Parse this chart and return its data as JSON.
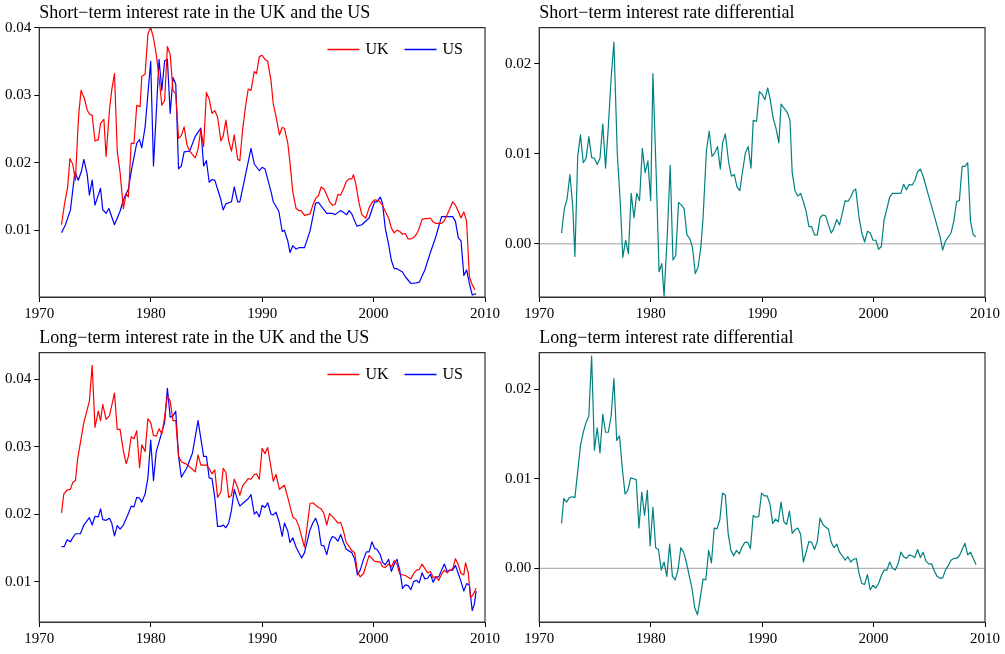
{
  "chart_data": [
    {
      "type": "line",
      "title": "Short−term interest rate in the UK and the US",
      "xlim": [
        1970,
        2010
      ],
      "xticks": [
        1970,
        1980,
        1990,
        2000,
        2010
      ],
      "ylim": [
        0.0001,
        0.04
      ],
      "yticks": [
        0.01,
        0.02,
        0.03,
        0.04
      ],
      "legend": "top right",
      "series": [
        {
          "name": "UK",
          "color": "#ff0000",
          "x": [
            1972.0,
            1972.25,
            1972.55,
            1972.75,
            1973.0,
            1973.25,
            1973.45,
            1973.55,
            1973.75,
            1974.05,
            1974.3,
            1974.5,
            1974.75,
            1975.0,
            1975.3,
            1975.5,
            1975.8,
            1976.0,
            1976.3,
            1976.5,
            1976.75,
            1977.0,
            1977.25,
            1977.55,
            1977.8,
            1978.0,
            1978.25,
            1978.5,
            1978.75,
            1979.05,
            1979.2,
            1979.5,
            1979.75,
            1980.0,
            1980.25,
            1980.5,
            1980.75,
            1981.0,
            1981.25,
            1981.5,
            1981.75,
            1982.0,
            1982.25,
            1982.5,
            1982.75,
            1983.0,
            1983.25,
            1983.5,
            1984.0,
            1984.25,
            1984.5,
            1984.75,
            1985.0,
            1985.25,
            1985.5,
            1985.75,
            1986.0,
            1986.3,
            1986.5,
            1986.75,
            1987.0,
            1987.25,
            1987.5,
            1987.8,
            1988.0,
            1988.25,
            1988.5,
            1988.75,
            1989.0,
            1989.3,
            1989.5,
            1989.75,
            1990.0,
            1990.25,
            1990.5,
            1990.8,
            1991.0,
            1991.25,
            1991.55,
            1991.8,
            1992.0,
            1992.3,
            1992.5,
            1992.75,
            1993.05,
            1993.3,
            1993.5,
            1993.8,
            1994.3,
            1994.55,
            1994.8,
            1995.05,
            1995.3,
            1995.55,
            1995.8,
            1996.05,
            1996.3,
            1996.55,
            1996.8,
            1997.05,
            1997.3,
            1997.55,
            1997.8,
            1998.05,
            1998.2,
            1998.4,
            1998.7,
            1998.95,
            1999.3,
            1999.6,
            1999.85,
            2000.1,
            2000.3,
            2000.5,
            2000.8,
            2001.05,
            2001.35,
            2001.6,
            2001.85,
            2002.1,
            2002.35,
            2002.6,
            2002.85,
            2003.1,
            2003.35,
            2003.6,
            2003.85,
            2004.1,
            2004.35,
            2004.6,
            2004.85,
            2005.1,
            2005.35,
            2005.6,
            2005.85,
            2006.1,
            2006.35,
            2006.6,
            2006.85,
            2007.1,
            2007.35,
            2007.6,
            2007.85,
            2008.1,
            2008.35,
            2008.6,
            2008.85,
            2009.1
          ],
          "values": [
            0.0108,
            0.0137,
            0.0164,
            0.0206,
            0.0198,
            0.0174,
            0.0244,
            0.0273,
            0.0307,
            0.0295,
            0.0278,
            0.0272,
            0.027,
            0.0232,
            0.0234,
            0.0258,
            0.0264,
            0.0209,
            0.0278,
            0.0307,
            0.0332,
            0.0217,
            0.0186,
            0.0132,
            0.0154,
            0.0149,
            0.0229,
            0.0228,
            0.0285,
            0.0283,
            0.0328,
            0.0331,
            0.0391,
            0.04,
            0.0385,
            0.036,
            0.0326,
            0.0285,
            0.0292,
            0.0372,
            0.036,
            0.0307,
            0.0302,
            0.0236,
            0.024,
            0.0253,
            0.0227,
            0.0217,
            0.0207,
            0.022,
            0.0249,
            0.0224,
            0.0304,
            0.0294,
            0.0273,
            0.0277,
            0.0268,
            0.0232,
            0.0239,
            0.0263,
            0.0232,
            0.0217,
            0.0241,
            0.0205,
            0.0203,
            0.0249,
            0.0282,
            0.0309,
            0.0307,
            0.0335,
            0.0332,
            0.0357,
            0.0359,
            0.0353,
            0.035,
            0.0321,
            0.0287,
            0.0268,
            0.0241,
            0.0252,
            0.0251,
            0.0229,
            0.02,
            0.0157,
            0.0132,
            0.0129,
            0.0129,
            0.0122,
            0.0124,
            0.0137,
            0.0147,
            0.0151,
            0.0164,
            0.0161,
            0.0152,
            0.0142,
            0.0137,
            0.0138,
            0.0153,
            0.0152,
            0.0161,
            0.0172,
            0.0176,
            0.0176,
            0.0182,
            0.0169,
            0.014,
            0.0123,
            0.0118,
            0.0133,
            0.0141,
            0.0145,
            0.0144,
            0.0143,
            0.0137,
            0.0128,
            0.0118,
            0.0103,
            0.0096,
            0.01,
            0.0098,
            0.0094,
            0.0095,
            0.0087,
            0.0087,
            0.0089,
            0.0094,
            0.0103,
            0.0116,
            0.0117,
            0.0117,
            0.0118,
            0.0112,
            0.011,
            0.011,
            0.011,
            0.0114,
            0.0123,
            0.0132,
            0.0142,
            0.0137,
            0.0128,
            0.0118,
            0.0127,
            0.0113,
            0.0031,
            0.0019,
            0.0012
          ]
        },
        {
          "name": "US",
          "color": "#0000ff",
          "x": [
            1972.0,
            1972.35,
            1972.8,
            1973.2,
            1973.5,
            1973.8,
            1974.0,
            1974.3,
            1974.5,
            1974.75,
            1975.0,
            1975.5,
            1975.7,
            1976.0,
            1976.25,
            1976.75,
            1977.25,
            1977.55,
            1978.0,
            1978.3,
            1978.75,
            1979.0,
            1979.2,
            1979.5,
            1980.0,
            1980.25,
            1980.5,
            1980.75,
            1981.0,
            1981.25,
            1981.5,
            1981.75,
            1982.0,
            1982.25,
            1982.5,
            1982.75,
            1983.0,
            1983.5,
            1984.0,
            1984.5,
            1984.75,
            1985.0,
            1985.25,
            1985.5,
            1985.75,
            1986.3,
            1986.5,
            1986.75,
            1987.25,
            1987.5,
            1987.8,
            1988.0,
            1988.5,
            1989.0,
            1989.3,
            1989.75,
            1990.0,
            1990.25,
            1990.8,
            1991.0,
            1991.5,
            1991.8,
            1992.0,
            1992.3,
            1992.5,
            1992.75,
            1993.05,
            1993.3,
            1993.8,
            1994.3,
            1994.8,
            1995.05,
            1995.8,
            1996.3,
            1996.55,
            1997.05,
            1997.6,
            1997.8,
            1998.05,
            1998.5,
            1998.95,
            1999.6,
            2000.1,
            2000.3,
            2000.6,
            2000.8,
            2001.05,
            2001.35,
            2001.6,
            2001.85,
            2002.1,
            2002.6,
            2002.85,
            2003.35,
            2003.85,
            2004.1,
            2004.6,
            2005.1,
            2005.6,
            2006.1,
            2006.6,
            2007.1,
            2007.35,
            2007.6,
            2007.85,
            2008.1,
            2008.35,
            2008.6,
            2008.85,
            2009.2
          ],
          "values": [
            0.0096,
            0.0108,
            0.013,
            0.0186,
            0.0174,
            0.0188,
            0.0205,
            0.0183,
            0.0152,
            0.0174,
            0.0137,
            0.0162,
            0.013,
            0.0125,
            0.0132,
            0.0108,
            0.0128,
            0.0145,
            0.0161,
            0.0191,
            0.0229,
            0.0234,
            0.0222,
            0.0253,
            0.035,
            0.0195,
            0.0273,
            0.0353,
            0.0307,
            0.0351,
            0.0353,
            0.0273,
            0.0326,
            0.0316,
            0.0191,
            0.0195,
            0.0216,
            0.0217,
            0.0239,
            0.0251,
            0.0195,
            0.0203,
            0.0171,
            0.0175,
            0.0174,
            0.0145,
            0.013,
            0.0139,
            0.0142,
            0.0164,
            0.0142,
            0.0142,
            0.0181,
            0.0221,
            0.0198,
            0.0188,
            0.0193,
            0.0191,
            0.0157,
            0.0142,
            0.0128,
            0.0098,
            0.01,
            0.0084,
            0.0067,
            0.0077,
            0.0072,
            0.0074,
            0.0074,
            0.0099,
            0.014,
            0.0141,
            0.0125,
            0.0125,
            0.0123,
            0.0129,
            0.0123,
            0.0129,
            0.0124,
            0.0106,
            0.0108,
            0.0118,
            0.0142,
            0.0142,
            0.0149,
            0.014,
            0.0103,
            0.0079,
            0.0055,
            0.0043,
            0.0043,
            0.0038,
            0.0031,
            0.0021,
            0.0022,
            0.0023,
            0.0041,
            0.0067,
            0.0091,
            0.012,
            0.012,
            0.012,
            0.0113,
            0.0089,
            0.0084,
            0.0033,
            0.0041,
            0.0021,
            0.0004,
            0.0006
          ]
        }
      ]
    },
    {
      "type": "line",
      "title": "Short−term interest rate differential",
      "xlim": [
        1970,
        2010
      ],
      "xticks": [
        1970,
        1980,
        1990,
        2000,
        2010
      ],
      "ylim": [
        -0.0059,
        0.024
      ],
      "yticks": [
        {
          "value": 0,
          "label": "0.00"
        },
        0.01,
        0.02
      ],
      "ref_lines": [
        {
          "axis": "y",
          "value": 0,
          "color": "#a0a0a0"
        }
      ],
      "series": [
        {
          "color": "#008080",
          "x": [
            1972.0,
            1972.25,
            1972.5,
            1972.75,
            1973.0,
            1973.2,
            1973.45,
            1973.7,
            1973.95,
            1974.2,
            1974.45,
            1974.7,
            1974.95,
            1975.2,
            1975.45,
            1975.7,
            1975.95,
            1976.2,
            1976.45,
            1976.7,
            1977.0,
            1977.25,
            1977.5,
            1977.75,
            1978.0,
            1978.25,
            1978.5,
            1978.75,
            1979.0,
            1979.25,
            1979.5,
            1979.75,
            1980.0,
            1980.2,
            1980.5,
            1980.75,
            1981.0,
            1981.2,
            1981.5,
            1981.75,
            1982.0,
            1982.25,
            1982.5,
            1982.75,
            1983.0,
            1983.25,
            1983.5,
            1983.75,
            1984.0,
            1984.25,
            1984.5,
            1984.7,
            1985.0,
            1985.25,
            1985.5,
            1985.75,
            1986.0,
            1986.25,
            1986.45,
            1986.7,
            1987.0,
            1987.25,
            1987.5,
            1987.75,
            1988.0,
            1988.2,
            1988.5,
            1988.75,
            1989.0,
            1989.2,
            1989.5,
            1989.75,
            1990.0,
            1990.25,
            1990.5,
            1990.7,
            1991.0,
            1991.25,
            1991.5,
            1991.7,
            1991.95,
            1992.25,
            1992.5,
            1992.7,
            1992.95,
            1993.2,
            1993.45,
            1993.7,
            1993.95,
            1994.2,
            1994.45,
            1994.7,
            1994.95,
            1995.2,
            1995.45,
            1995.7,
            1995.95,
            1996.2,
            1996.4,
            1996.7,
            1996.95,
            1997.2,
            1997.45,
            1997.7,
            1997.95,
            1998.2,
            1998.4,
            1998.7,
            1998.95,
            1999.2,
            1999.45,
            1999.7,
            1999.95,
            2000.2,
            2000.45,
            2000.7,
            2000.95,
            2001.2,
            2001.45,
            2001.7,
            2002.0,
            2002.2,
            2002.45,
            2002.7,
            2002.95,
            2003.2,
            2003.45,
            2003.7,
            2003.95,
            2004.2,
            2004.45,
            2004.95,
            2005.45,
            2005.95,
            2006.2,
            2006.45,
            2006.95,
            2007.2,
            2007.45,
            2007.7,
            2007.95,
            2008.2,
            2008.45,
            2008.7,
            2008.95,
            2009.2
          ],
          "values": [
            0.0012,
            0.0039,
            0.005,
            0.0077,
            0.0043,
            -0.0014,
            0.0097,
            0.0121,
            0.009,
            0.0095,
            0.0119,
            0.0096,
            0.0095,
            0.0088,
            0.0095,
            0.0133,
            0.0084,
            0.013,
            0.0184,
            0.0224,
            0.0101,
            0.005,
            -0.0015,
            0.0004,
            -0.0011,
            0.0056,
            0.0029,
            0.0056,
            0.0048,
            0.0106,
            0.0079,
            0.0092,
            0.0048,
            0.0189,
            0.0075,
            -0.0031,
            -0.0022,
            -0.0058,
            0.0012,
            0.0087,
            -0.0018,
            -0.0013,
            0.0046,
            0.0043,
            0.0039,
            0.001,
            0.0006,
            -0.0004,
            -0.0033,
            -0.0026,
            -0.0004,
            0.0029,
            0.0103,
            0.0125,
            0.0097,
            0.0101,
            0.0108,
            0.0083,
            0.0112,
            0.0122,
            0.009,
            0.0075,
            0.0077,
            0.0063,
            0.0059,
            0.0077,
            0.0101,
            0.0108,
            0.0084,
            0.0137,
            0.0136,
            0.0169,
            0.0166,
            0.016,
            0.0173,
            0.0162,
            0.0139,
            0.0128,
            0.0112,
            0.0155,
            0.0151,
            0.0146,
            0.0137,
            0.0079,
            0.0059,
            0.0053,
            0.0056,
            0.0047,
            0.0036,
            0.0019,
            0.0019,
            0.001,
            0.001,
            0.0029,
            0.0032,
            0.0031,
            0.0021,
            0.0012,
            0.0016,
            0.0027,
            0.0021,
            0.0034,
            0.0048,
            0.0047,
            0.0052,
            0.0059,
            0.0061,
            0.0029,
            0.0012,
            0.0002,
            0.0014,
            0.0012,
            0.0004,
            0.0004,
            -0.0006,
            -0.0003,
            0.0027,
            0.0039,
            0.0052,
            0.0056,
            0.0056,
            0.0056,
            0.0056,
            0.0066,
            0.006,
            0.0066,
            0.0065,
            0.007,
            0.008,
            0.0083,
            0.0075,
            0.0053,
            0.0031,
            0.0009,
            -0.0007,
            0.0003,
            0.0012,
            0.0025,
            0.0047,
            0.0048,
            0.0086,
            0.0086,
            0.009,
            0.0025,
            0.001,
            0.0008
          ]
        }
      ]
    },
    {
      "type": "line",
      "title": "Long−term interest rate in the UK and the US",
      "xlim": [
        1970,
        2010
      ],
      "xticks": [
        1970,
        1980,
        1990,
        2000,
        2010
      ],
      "ylim": [
        0.004,
        0.044
      ],
      "yticks": [
        0.01,
        0.02,
        0.03,
        0.04
      ],
      "legend": "top right",
      "series": [
        {
          "name": "UK",
          "color": "#ff0000",
          "x": [
            1972.0,
            1972.2,
            1972.5,
            1972.8,
            1973.0,
            1973.25,
            1973.45,
            1973.75,
            1974.0,
            1974.5,
            1974.75,
            1975.0,
            1975.3,
            1975.5,
            1975.7,
            1976.0,
            1976.3,
            1976.75,
            1977.0,
            1977.25,
            1977.55,
            1977.8,
            1978.0,
            1978.25,
            1978.5,
            1978.75,
            1979.0,
            1979.2,
            1979.5,
            1979.75,
            1980.0,
            1980.25,
            1980.5,
            1980.75,
            1981.0,
            1981.25,
            1981.5,
            1981.75,
            1982.0,
            1982.25,
            1982.5,
            1982.75,
            1983.25,
            1984.0,
            1984.25,
            1984.5,
            1985.0,
            1985.25,
            1985.5,
            1985.75,
            1986.0,
            1986.3,
            1986.5,
            1986.75,
            1987.0,
            1987.25,
            1987.5,
            1987.8,
            1988.0,
            1988.25,
            1988.75,
            1989.0,
            1989.3,
            1989.5,
            1989.75,
            1990.0,
            1990.25,
            1990.5,
            1990.8,
            1991.0,
            1991.25,
            1991.55,
            1992.0,
            1992.3,
            1992.75,
            1993.05,
            1993.3,
            1993.8,
            1994.3,
            1994.55,
            1995.05,
            1995.3,
            1995.55,
            1995.8,
            1996.05,
            1996.55,
            1996.8,
            1997.05,
            1997.3,
            1997.55,
            1998.05,
            1998.3,
            1998.55,
            1998.8,
            1999.1,
            1999.6,
            2000.1,
            2000.6,
            2000.8,
            2001.05,
            2001.35,
            2001.6,
            2001.85,
            2002.1,
            2002.35,
            2002.85,
            2003.35,
            2003.6,
            2003.85,
            2004.1,
            2004.35,
            2004.85,
            2005.1,
            2005.35,
            2005.6,
            2005.85,
            2006.1,
            2006.35,
            2006.6,
            2006.85,
            2007.1,
            2007.35,
            2007.6,
            2007.85,
            2008.1,
            2008.25,
            2008.5,
            2008.7,
            2008.95,
            2009.2
          ],
          "values": [
            0.0202,
            0.023,
            0.0236,
            0.0237,
            0.0247,
            0.025,
            0.0283,
            0.0312,
            0.0336,
            0.0368,
            0.0421,
            0.0329,
            0.0353,
            0.0339,
            0.0363,
            0.0341,
            0.0346,
            0.038,
            0.0326,
            0.0326,
            0.0294,
            0.0275,
            0.0286,
            0.0315,
            0.0312,
            0.0324,
            0.0269,
            0.0303,
            0.0293,
            0.0342,
            0.0336,
            0.0317,
            0.0316,
            0.0327,
            0.0319,
            0.0344,
            0.0376,
            0.0368,
            0.0339,
            0.0339,
            0.0286,
            0.0278,
            0.0274,
            0.0263,
            0.0288,
            0.0273,
            0.0273,
            0.0268,
            0.026,
            0.0266,
            0.0225,
            0.0233,
            0.0268,
            0.0262,
            0.0225,
            0.0228,
            0.0252,
            0.024,
            0.0228,
            0.0242,
            0.0253,
            0.0252,
            0.0259,
            0.026,
            0.0252,
            0.0298,
            0.029,
            0.0299,
            0.0269,
            0.0249,
            0.0259,
            0.0237,
            0.0243,
            0.0225,
            0.0196,
            0.0192,
            0.0182,
            0.0151,
            0.0216,
            0.0217,
            0.021,
            0.0208,
            0.0201,
            0.0184,
            0.0201,
            0.0192,
            0.0187,
            0.0188,
            0.0175,
            0.0158,
            0.0146,
            0.0143,
            0.0115,
            0.0107,
            0.0112,
            0.0139,
            0.013,
            0.0129,
            0.0122,
            0.0121,
            0.0126,
            0.0122,
            0.0131,
            0.0126,
            0.0111,
            0.0109,
            0.0104,
            0.0112,
            0.0117,
            0.0118,
            0.0126,
            0.0113,
            0.0115,
            0.0106,
            0.0107,
            0.0102,
            0.0111,
            0.0117,
            0.0113,
            0.0117,
            0.0119,
            0.0134,
            0.0125,
            0.0112,
            0.011,
            0.0128,
            0.0113,
            0.0076,
            0.0081,
            0.009
          ]
        },
        {
          "name": "US",
          "color": "#0000ff",
          "x": [
            1972.0,
            1972.25,
            1972.5,
            1972.8,
            1973.0,
            1973.25,
            1973.7,
            1974.0,
            1974.5,
            1974.75,
            1975.0,
            1975.3,
            1975.5,
            1975.7,
            1976.0,
            1976.3,
            1976.5,
            1976.75,
            1977.0,
            1977.25,
            1977.55,
            1978.0,
            1978.25,
            1978.5,
            1978.75,
            1979.0,
            1979.2,
            1979.5,
            1979.75,
            1980.0,
            1980.25,
            1980.5,
            1980.75,
            1981.0,
            1981.25,
            1981.5,
            1981.75,
            1982.0,
            1982.25,
            1982.5,
            1982.75,
            1983.25,
            1983.75,
            1984.25,
            1984.75,
            1985.0,
            1985.25,
            1985.5,
            1985.75,
            1986.0,
            1986.3,
            1986.5,
            1986.75,
            1987.0,
            1987.25,
            1987.5,
            1987.8,
            1988.0,
            1988.25,
            1988.75,
            1989.0,
            1989.3,
            1989.5,
            1989.75,
            1990.0,
            1990.25,
            1990.5,
            1990.8,
            1991.0,
            1991.25,
            1991.55,
            1991.8,
            1992.0,
            1992.3,
            1992.5,
            1992.75,
            1993.05,
            1993.55,
            1993.8,
            1994.3,
            1994.55,
            1994.8,
            1995.05,
            1995.3,
            1995.55,
            1995.8,
            1996.05,
            1996.3,
            1996.55,
            1996.8,
            1997.05,
            1997.3,
            1997.55,
            1998.05,
            1998.3,
            1998.55,
            1998.8,
            1999.1,
            1999.35,
            1999.6,
            1999.85,
            2000.1,
            2000.3,
            2000.6,
            2000.8,
            2001.05,
            2001.35,
            2001.6,
            2001.85,
            2002.1,
            2002.35,
            2002.6,
            2002.85,
            2003.1,
            2003.35,
            2003.6,
            2003.85,
            2004.1,
            2004.35,
            2004.6,
            2004.85,
            2005.1,
            2005.35,
            2005.6,
            2005.85,
            2006.1,
            2006.35,
            2006.6,
            2006.85,
            2007.1,
            2007.35,
            2007.6,
            2007.85,
            2008.1,
            2008.35,
            2008.6,
            2008.85,
            2009.05,
            2009.2
          ],
          "values": [
            0.0152,
            0.0152,
            0.0162,
            0.0159,
            0.0165,
            0.0171,
            0.0171,
            0.0184,
            0.0195,
            0.0184,
            0.0197,
            0.0196,
            0.0208,
            0.0192,
            0.0191,
            0.0194,
            0.0187,
            0.0168,
            0.0183,
            0.0178,
            0.0184,
            0.0201,
            0.0212,
            0.0211,
            0.0225,
            0.0224,
            0.0218,
            0.023,
            0.0254,
            0.031,
            0.025,
            0.0293,
            0.0307,
            0.0322,
            0.0336,
            0.0387,
            0.0344,
            0.0346,
            0.0353,
            0.0286,
            0.0255,
            0.0269,
            0.0291,
            0.0339,
            0.0286,
            0.0286,
            0.0254,
            0.0253,
            0.0225,
            0.0182,
            0.0182,
            0.0184,
            0.018,
            0.0187,
            0.0206,
            0.0237,
            0.0221,
            0.0212,
            0.0216,
            0.0223,
            0.0229,
            0.02,
            0.0204,
            0.0196,
            0.0213,
            0.021,
            0.0217,
            0.02,
            0.0199,
            0.0203,
            0.0187,
            0.0167,
            0.0187,
            0.0175,
            0.0158,
            0.0165,
            0.0151,
            0.0135,
            0.0143,
            0.0177,
            0.0187,
            0.0194,
            0.0182,
            0.0154,
            0.0153,
            0.014,
            0.0158,
            0.0167,
            0.0165,
            0.016,
            0.017,
            0.0158,
            0.0148,
            0.0143,
            0.0134,
            0.011,
            0.0117,
            0.0133,
            0.0144,
            0.0144,
            0.0159,
            0.0149,
            0.0148,
            0.014,
            0.0129,
            0.0125,
            0.0133,
            0.0115,
            0.0126,
            0.0133,
            0.0117,
            0.009,
            0.0095,
            0.0094,
            0.0088,
            0.01,
            0.0102,
            0.0098,
            0.0113,
            0.0104,
            0.0105,
            0.0111,
            0.0099,
            0.0107,
            0.0107,
            0.0117,
            0.0126,
            0.0115,
            0.0117,
            0.0117,
            0.0124,
            0.0112,
            0.01,
            0.0086,
            0.0097,
            0.0095,
            0.0057,
            0.0067,
            0.0086
          ]
        }
      ]
    },
    {
      "type": "line",
      "title": "Long−term interest rate differential",
      "xlim": [
        1970,
        2010
      ],
      "xticks": [
        1970,
        1980,
        1990,
        2000,
        2010
      ],
      "ylim": [
        -0.006,
        0.0241
      ],
      "yticks": [
        {
          "value": 0,
          "label": "0.00"
        },
        0.01,
        0.02
      ],
      "ref_lines": [
        {
          "axis": "y",
          "value": 0,
          "color": "#a0a0a0"
        }
      ],
      "series": [
        {
          "color": "#008080",
          "x": [
            1972.0,
            1972.2,
            1972.45,
            1972.7,
            1972.95,
            1973.2,
            1973.45,
            1973.7,
            1973.95,
            1974.2,
            1974.45,
            1974.7,
            1974.95,
            1975.2,
            1975.45,
            1975.7,
            1975.95,
            1976.2,
            1976.45,
            1976.7,
            1976.95,
            1977.2,
            1977.45,
            1977.7,
            1977.95,
            1978.2,
            1978.45,
            1978.7,
            1978.95,
            1979.2,
            1979.45,
            1979.7,
            1979.95,
            1980.2,
            1980.45,
            1980.7,
            1980.95,
            1981.2,
            1981.45,
            1981.7,
            1981.95,
            1982.2,
            1982.45,
            1982.7,
            1982.95,
            1983.2,
            1983.45,
            1983.7,
            1983.95,
            1984.2,
            1984.45,
            1984.7,
            1984.95,
            1985.2,
            1985.45,
            1985.7,
            1985.95,
            1986.2,
            1986.45,
            1986.7,
            1986.95,
            1987.2,
            1987.45,
            1987.7,
            1987.95,
            1988.2,
            1988.45,
            1988.7,
            1988.95,
            1989.2,
            1989.45,
            1989.7,
            1989.95,
            1990.2,
            1990.45,
            1990.7,
            1990.95,
            1991.2,
            1991.45,
            1991.7,
            1991.95,
            1992.2,
            1992.45,
            1992.7,
            1992.95,
            1993.2,
            1993.45,
            1993.7,
            1993.95,
            1994.2,
            1994.45,
            1994.7,
            1994.95,
            1995.2,
            1995.45,
            1995.7,
            1995.95,
            1996.2,
            1996.45,
            1996.7,
            1996.95,
            1997.2,
            1997.45,
            1997.7,
            1997.95,
            1998.2,
            1998.45,
            1998.7,
            1998.95,
            1999.2,
            1999.45,
            1999.7,
            1999.95,
            2000.2,
            2000.45,
            2000.7,
            2000.95,
            2001.2,
            2001.45,
            2001.7,
            2001.95,
            2002.2,
            2002.45,
            2002.7,
            2002.95,
            2003.2,
            2003.45,
            2003.7,
            2003.95,
            2004.2,
            2004.45,
            2004.7,
            2004.95,
            2005.2,
            2005.45,
            2005.7,
            2005.95,
            2006.2,
            2006.45,
            2006.7,
            2006.95,
            2007.2,
            2007.45,
            2007.7,
            2007.95,
            2008.2,
            2008.45,
            2008.7,
            2008.95,
            2009.2
          ],
          "values": [
            0.005,
            0.0078,
            0.0074,
            0.0079,
            0.008,
            0.0079,
            0.0108,
            0.0137,
            0.0152,
            0.0163,
            0.017,
            0.0237,
            0.0132,
            0.0157,
            0.0129,
            0.0172,
            0.0152,
            0.0152,
            0.017,
            0.0212,
            0.0143,
            0.0148,
            0.0112,
            0.0083,
            0.0087,
            0.0101,
            0.01,
            0.0099,
            0.0045,
            0.0085,
            0.0059,
            0.0087,
            0.0025,
            0.0068,
            0.0023,
            0.0021,
            -0.0002,
            0.0007,
            -0.0009,
            0.0027,
            -0.0009,
            -0.0013,
            -0.0002,
            0.0023,
            0.0018,
            0.0007,
            -0.0008,
            -0.0022,
            -0.0044,
            -0.0052,
            -0.0033,
            -0.0012,
            -0.0013,
            0.002,
            0.0006,
            0.0045,
            0.0044,
            0.0054,
            0.0084,
            0.0082,
            0.0039,
            0.002,
            0.0014,
            0.002,
            0.0016,
            0.0024,
            0.0029,
            0.0029,
            0.0022,
            0.0059,
            0.0057,
            0.0058,
            0.0084,
            0.0081,
            0.0081,
            0.0072,
            0.005,
            0.0055,
            0.0052,
            0.0074,
            0.0052,
            0.0049,
            0.0064,
            0.0039,
            0.0043,
            0.0045,
            0.0038,
            0.0007,
            0.0018,
            0.003,
            0.0029,
            0.0021,
            0.003,
            0.0056,
            0.0049,
            0.0046,
            0.0044,
            0.0029,
            0.0023,
            0.0027,
            0.0018,
            0.0014,
            0.0009,
            0.0013,
            0.0007,
            0.001,
            0.0011,
            -0.0006,
            -0.0017,
            -0.0018,
            -0.0007,
            -0.0024,
            -0.0019,
            -0.0022,
            -0.0017,
            -0.0008,
            -0.0002,
            -0.0002,
            0.0007,
            0.0,
            -0.0002,
            0.0005,
            0.0018,
            0.0013,
            0.0011,
            0.0015,
            0.0014,
            0.0012,
            0.0021,
            0.0012,
            0.0018,
            0.0008,
            0.0005,
            0.0005,
            -0.0003,
            -0.0009,
            -0.0011,
            -0.0011,
            -0.0002,
            0.0003,
            0.0009,
            0.0011,
            0.0011,
            0.0014,
            0.0021,
            0.0028,
            0.0015,
            0.0018,
            0.0011,
            0.0004
          ]
        }
      ]
    }
  ]
}
